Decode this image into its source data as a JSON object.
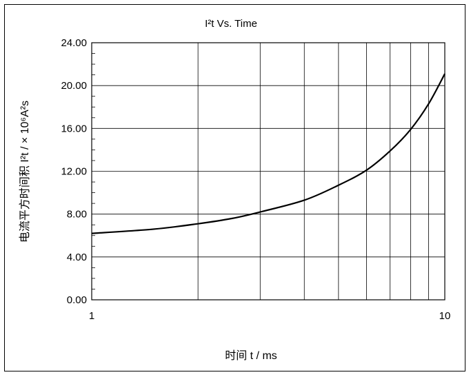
{
  "chart_data": {
    "type": "line",
    "title": "I²t  Vs. Time",
    "xlabel": "时间 t / ms",
    "ylabel": "电流平方时间积 I²t / × 10⁶A²s",
    "x_scale": "log",
    "xlim": [
      1,
      10
    ],
    "ylim": [
      0,
      24
    ],
    "x_tick_labels": [
      "1",
      "10"
    ],
    "y_tick_labels": [
      "0.00",
      "4.00",
      "8.00",
      "12.00",
      "16.00",
      "20.00",
      "24.00"
    ],
    "y_ticks": [
      0,
      4,
      8,
      12,
      16,
      20,
      24
    ],
    "grid": true,
    "series": [
      {
        "x": [
          1,
          1.5,
          2,
          2.5,
          3,
          4,
          5,
          6,
          7,
          8,
          9,
          10
        ],
        "values": [
          6.2,
          6.6,
          7.1,
          7.6,
          8.2,
          9.3,
          10.7,
          12.1,
          13.9,
          15.9,
          18.3,
          21.1
        ]
      }
    ]
  }
}
